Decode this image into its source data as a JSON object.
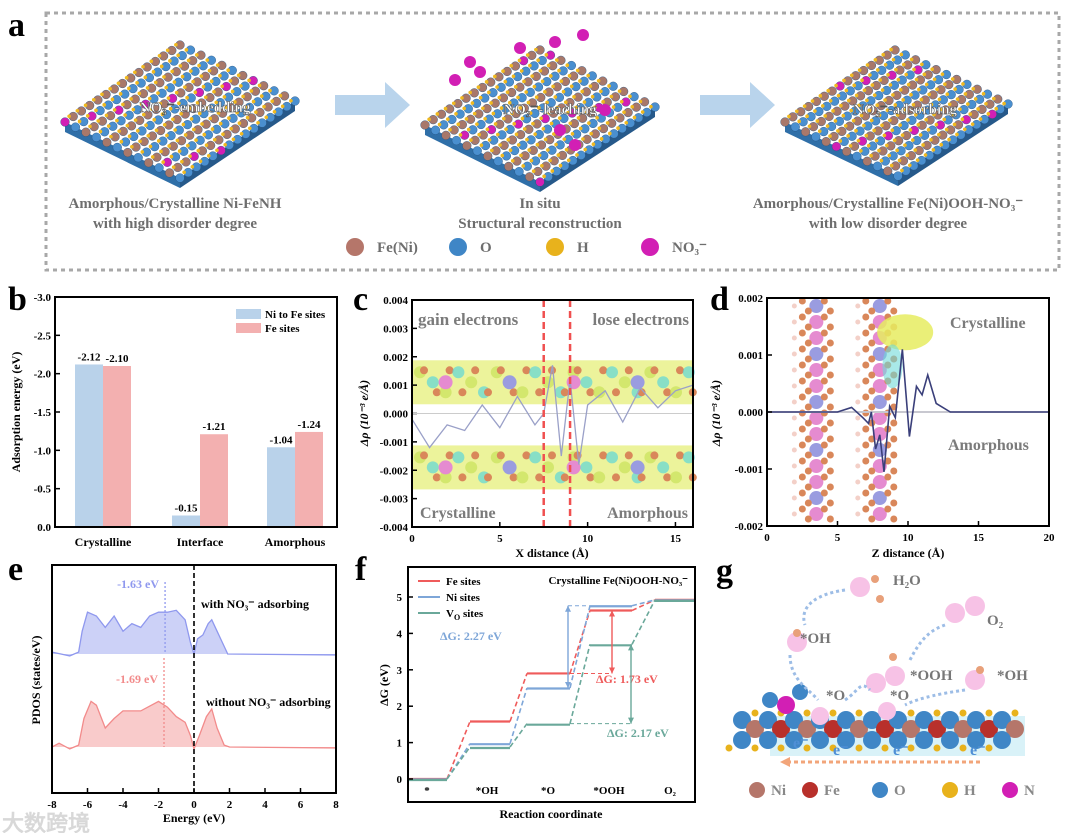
{
  "panel_labels": {
    "a": "a",
    "b": "b",
    "c": "c",
    "d": "d",
    "e": "e",
    "f": "f",
    "g": "g"
  },
  "panel_a": {
    "step1_label": "NO₃⁻-embedding",
    "step2_label": "NO₃⁻-leaching",
    "step3_label": "NO₃⁻-adsorbing",
    "left_caption_1": "Amorphous/Crystalline Ni-FeNH",
    "left_caption_2": "with high disorder degree",
    "middle_caption_1": "In situ",
    "middle_caption_2": "Structural reconstruction",
    "right_caption_1": "Amorphous/Crystalline Fe(Ni)OOH-NO₃⁻",
    "right_caption_2": "with low disorder degree",
    "legend": [
      {
        "label": "Fe(Ni)",
        "color": "#b5766a"
      },
      {
        "label": "O",
        "color": "#3f86c6"
      },
      {
        "label": "H",
        "color": "#e8b21c"
      },
      {
        "label": "NO₃⁻",
        "color": "#d21fb4"
      }
    ]
  },
  "panel_g": {
    "labels": {
      "h2o": "H₂O",
      "o2": "O₂",
      "oh1": "*OH",
      "ooh": "*OOH",
      "oh2": "*OH",
      "o1": "*O",
      "o2ads": "*O",
      "e": "e⁻"
    },
    "legend": [
      {
        "label": "Ni",
        "color": "#b5766a"
      },
      {
        "label": "Fe",
        "color": "#b8302b"
      },
      {
        "label": "O",
        "color": "#3f86c6"
      },
      {
        "label": "H",
        "color": "#e8b21c"
      },
      {
        "label": "N",
        "color": "#d21fb4"
      }
    ]
  },
  "watermark": "大数跨境",
  "chart_data": [
    {
      "id": "b",
      "type": "bar",
      "title": "",
      "xlabel": "",
      "ylabel": "Adsorption energy (eV)",
      "categories": [
        "Crystalline",
        "Interface",
        "Amorphous"
      ],
      "series": [
        {
          "name": "Ni  to Fe sites",
          "color": "#b9d2ea",
          "values": [
            -2.12,
            -0.15,
            -1.04
          ],
          "labels": [
            "-2.12",
            "-0.15",
            "-1.04"
          ]
        },
        {
          "name": "Fe  sites",
          "color": "#f3b0b0",
          "values": [
            -2.1,
            -1.21,
            -1.24
          ],
          "labels": [
            "-2.10",
            "-1.21",
            "-1.24"
          ]
        }
      ],
      "ylim": [
        0,
        -3.0
      ],
      "yticks": [
        "0.0",
        "-0.5",
        "-1.0",
        "-1.5",
        "-2.0",
        "-2.5",
        "-3.0"
      ],
      "legend": "top-right"
    },
    {
      "id": "c",
      "type": "line",
      "xlabel": "X distance (Å)",
      "ylabel": "Δρ (10⁻³ e/Å)",
      "xlim": [
        0,
        16
      ],
      "ylim": [
        -0.004,
        0.004
      ],
      "xticks": [
        "0",
        "5",
        "10",
        "15"
      ],
      "yticks": [
        "-0.004",
        "-0.003",
        "-0.002",
        "-0.001",
        "0.000",
        "0.001",
        "0.002",
        "0.003",
        "0.004"
      ],
      "annotations": [
        "gain electrons",
        "lose electrons",
        "Crystalline",
        "Amorphous"
      ],
      "boundaries_x": [
        7.5,
        9.0
      ],
      "series": [
        {
          "name": "Δρ",
          "color": "#9aa0c8",
          "x": [
            0,
            1,
            2,
            3,
            4,
            5,
            6,
            7,
            7.5,
            8,
            8.5,
            9,
            9.5,
            10,
            11,
            12,
            13,
            14,
            15,
            16
          ],
          "y": [
            -0.0002,
            -0.0012,
            -0.0004,
            -0.0006,
            0.0003,
            -0.0005,
            0.0006,
            -0.0004,
            0.0,
            0.0017,
            -0.0015,
            0.0012,
            -0.0018,
            0.0003,
            0.0008,
            -0.0003,
            0.0009,
            0.0002,
            0.0008,
            0.001
          ]
        }
      ]
    },
    {
      "id": "d",
      "type": "line",
      "xlabel": "Z distance (Å)",
      "ylabel": "Δρ (10⁻³ e/Å)",
      "xlim": [
        0,
        20
      ],
      "ylim": [
        -0.002,
        0.002
      ],
      "xticks": [
        "0",
        "5",
        "10",
        "15",
        "20"
      ],
      "yticks": [
        "-0.002",
        "-0.001",
        "0.000",
        "0.001",
        "0.002"
      ],
      "annotations": [
        "Crystalline",
        "Amorphous"
      ],
      "series": [
        {
          "name": "Δρ",
          "color": "#3a3f7a",
          "x": [
            0,
            5,
            6,
            6.8,
            7.2,
            7.4,
            7.7,
            8,
            8.3,
            8.7,
            9.1,
            9.6,
            10.1,
            10.6,
            11,
            11.4,
            12,
            13,
            20
          ],
          "y": [
            0,
            0,
            8e-05,
            -0.0001,
            -0.0002,
            0,
            -0.00065,
            -0.0004,
            -0.00105,
            0.0001,
            -0.0001,
            0.0011,
            -0.00043,
            0.00045,
            0.0003,
            0.00065,
            0.00015,
            0,
            0
          ]
        }
      ]
    },
    {
      "id": "e",
      "type": "area",
      "xlabel": "Energy (eV)",
      "ylabel": "PDOS (states/eV)",
      "xlim": [
        -8,
        8
      ],
      "xticks": [
        "-8",
        "-6",
        "-4",
        "-2",
        "0",
        "2",
        "4",
        "6",
        "8"
      ],
      "series": [
        {
          "name": "with NO₃⁻ adsorbing",
          "color": "#8f98ee",
          "band_center_label": "-1.63 eV",
          "band_center": -1.63,
          "offset": 5,
          "x": [
            -8,
            -7.5,
            -7,
            -6.5,
            -6.3,
            -6,
            -5.5,
            -5,
            -4.5,
            -4,
            -3.5,
            -3,
            -2.5,
            -2,
            -1.5,
            -1,
            -0.5,
            -0.2,
            0,
            0.2,
            0.5,
            0.8,
            1,
            1.3,
            1.7,
            1.9,
            8
          ],
          "y": [
            0.1,
            0,
            -0.1,
            0.1,
            1.2,
            2.2,
            2.0,
            1.4,
            2.0,
            1.2,
            1.6,
            1.4,
            2.0,
            2.2,
            2.2,
            2.3,
            1.8,
            0.6,
            0,
            0.8,
            1.0,
            1.6,
            1.8,
            1.2,
            0.4,
            0,
            -0.05
          ]
        },
        {
          "name": "without NO₃⁻ adsorbing",
          "color": "#f28b8b",
          "band_center_label": "-1.69 eV",
          "band_center": -1.69,
          "offset": 0,
          "x": [
            -8,
            -7.6,
            -7,
            -6.5,
            -6.2,
            -5.8,
            -5.5,
            -5,
            -4.5,
            -4,
            -3,
            -2,
            -1.5,
            -1,
            -0.5,
            -0.2,
            0,
            0.3,
            0.7,
            1,
            1.3,
            1.7,
            2,
            8
          ],
          "y": [
            0,
            0.2,
            -0.1,
            0.1,
            1.5,
            2.4,
            2.2,
            1.0,
            1.5,
            1.9,
            1.9,
            2.4,
            2.1,
            1.6,
            1.3,
            0.6,
            -0.1,
            0.6,
            1.6,
            2.0,
            1.0,
            0.1,
            0,
            -0.05
          ]
        }
      ],
      "fermi_level": 0
    },
    {
      "id": "f",
      "type": "line",
      "title": "Crystalline Fe(Ni)OOH-NO₃⁻",
      "xlabel": "Reaction coordinate",
      "ylabel": "ΔG (eV)",
      "categories": [
        "*",
        "*OH",
        "*O",
        "*OOH",
        "O₂"
      ],
      "ylim": [
        0,
        5.5
      ],
      "yticks": [
        "0",
        "1",
        "2",
        "3",
        "4",
        "5"
      ],
      "legend": "top-left",
      "series": [
        {
          "name": "Fe sites",
          "name_main": "Fe sites",
          "color": "#ef5b5b",
          "values": [
            0,
            1.58,
            2.9,
            4.63,
            4.92
          ]
        },
        {
          "name": "Ni sites",
          "name_main": "Ni sites",
          "color": "#7ea6d8",
          "values": [
            0,
            0.97,
            2.5,
            4.76,
            4.92
          ]
        },
        {
          "name": "VO sites",
          "name_main": "V",
          "name_sub": "O",
          "name_rest": " sites",
          "color": "#6aa89a",
          "values": [
            0,
            0.88,
            1.52,
            3.7,
            4.92
          ]
        }
      ],
      "annotations": [
        {
          "text": "ΔG: 2.27 eV",
          "series": "Ni sites",
          "from": 2.5,
          "to": 4.76
        },
        {
          "text": "ΔG: 1.73 eV",
          "series": "Fe sites",
          "from": 2.9,
          "to": 4.63
        },
        {
          "text": "ΔG: 2.17 eV",
          "series": "VO sites",
          "from": 1.52,
          "to": 3.7
        }
      ]
    }
  ]
}
